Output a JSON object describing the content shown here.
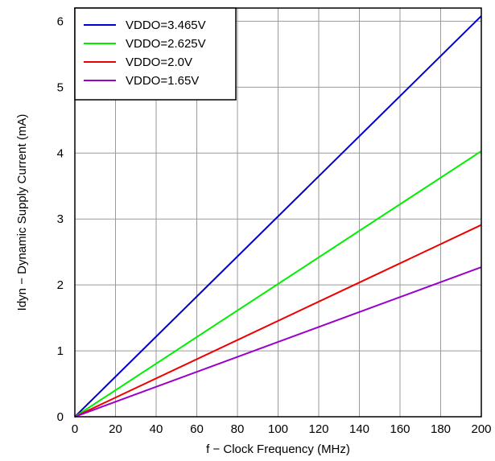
{
  "chart_data": {
    "type": "line",
    "xlabel": "f − Clock Frequency (MHz)",
    "ylabel": "Idyn − Dynamic Supply Current (mA)",
    "xlim": [
      0,
      200
    ],
    "ylim": [
      0,
      6.2
    ],
    "x_ticks": [
      0,
      20,
      40,
      60,
      80,
      100,
      120,
      140,
      160,
      180,
      200
    ],
    "y_ticks": [
      0,
      1,
      2,
      3,
      4,
      5,
      6
    ],
    "grid": true,
    "legend_position": "top-left",
    "series": [
      {
        "name": "VDDO=3.465V",
        "color": "#0000cc",
        "x": [
          0,
          200
        ],
        "y": [
          0,
          6.08
        ]
      },
      {
        "name": "VDDO=2.625V",
        "color": "#00ee00",
        "x": [
          0,
          200
        ],
        "y": [
          0,
          4.03
        ]
      },
      {
        "name": "VDDO=2.0V",
        "color": "#ee0000",
        "x": [
          0,
          200
        ],
        "y": [
          0,
          2.91
        ]
      },
      {
        "name": "VDDO=1.65V",
        "color": "#9900cc",
        "x": [
          0,
          200
        ],
        "y": [
          0,
          2.27
        ]
      }
    ]
  }
}
